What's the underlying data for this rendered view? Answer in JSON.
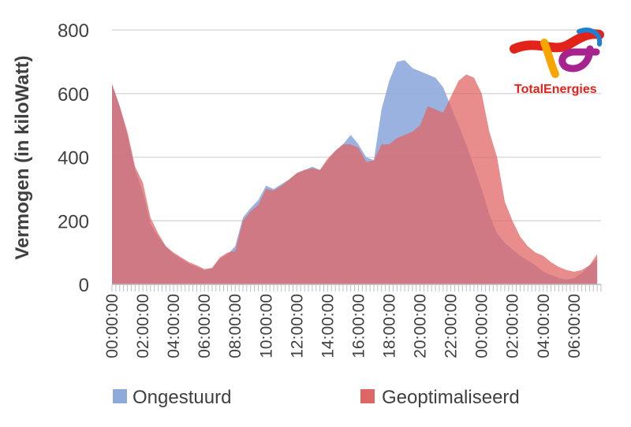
{
  "chart_data": {
    "type": "area",
    "ylabel": "Vermogen (in kiloWatt)",
    "xlabel": "",
    "ylim": [
      0,
      800
    ],
    "yticks": [
      0,
      200,
      400,
      600,
      800
    ],
    "grid": true,
    "legend_position": "bottom",
    "x_tick_labels": [
      "00:00:00",
      "02:00:00",
      "04:00:00",
      "06:00:00",
      "08:00:00",
      "10:00:00",
      "12:00:00",
      "14:00:00",
      "16:00:00",
      "18:00:00",
      "20:00:00",
      "22:00:00",
      "00:00:00",
      "02:00:00",
      "04:00:00",
      "06:00:00"
    ],
    "x_hours": [
      0,
      0.5,
      1,
      1.5,
      2,
      2.5,
      3,
      3.5,
      4,
      4.5,
      5,
      5.5,
      6,
      6.5,
      7,
      7.5,
      8,
      8.5,
      9,
      9.5,
      10,
      10.5,
      11,
      11.5,
      12,
      12.5,
      13,
      13.5,
      14,
      14.5,
      15,
      15.5,
      16,
      16.5,
      17,
      17.5,
      18,
      18.5,
      19,
      19.5,
      20,
      20.5,
      21,
      21.5,
      22,
      22.5,
      23,
      23.5,
      24,
      24.5,
      25,
      25.5,
      26,
      26.5,
      27,
      27.5,
      28,
      28.5,
      29,
      29.5,
      30,
      30.5,
      31,
      31.5
    ],
    "series": [
      {
        "name": "Ongestuurd",
        "color": "#8eaadb",
        "values": [
          630,
          560,
          470,
          360,
          290,
          190,
          150,
          120,
          95,
          80,
          65,
          55,
          45,
          50,
          80,
          95,
          120,
          210,
          240,
          265,
          310,
          300,
          315,
          330,
          350,
          360,
          370,
          360,
          390,
          420,
          440,
          470,
          440,
          400,
          390,
          550,
          640,
          700,
          705,
          680,
          670,
          660,
          650,
          620,
          560,
          500,
          440,
          370,
          300,
          220,
          160,
          130,
          110,
          90,
          75,
          60,
          40,
          30,
          20,
          15,
          20,
          35,
          60,
          80
        ],
        "fill_opacity": 0.9
      },
      {
        "name": "Geoptimaliseerd",
        "color": "#e06666",
        "values": [
          630,
          560,
          480,
          370,
          320,
          210,
          160,
          120,
          100,
          85,
          70,
          60,
          48,
          52,
          85,
          100,
          105,
          200,
          230,
          250,
          300,
          295,
          310,
          330,
          350,
          360,
          365,
          360,
          395,
          420,
          440,
          440,
          430,
          385,
          390,
          440,
          440,
          460,
          470,
          480,
          500,
          560,
          550,
          540,
          590,
          640,
          660,
          650,
          600,
          480,
          400,
          260,
          200,
          150,
          120,
          100,
          90,
          70,
          55,
          45,
          40,
          45,
          60,
          95
        ],
        "fill_opacity": 0.75
      }
    ]
  },
  "brand": {
    "name": "TotalEnergies"
  }
}
